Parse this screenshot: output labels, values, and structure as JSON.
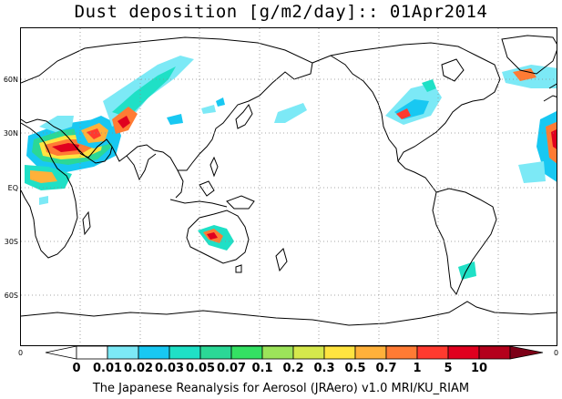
{
  "title": "Dust deposition [g/m2/day]:: 01Apr2014",
  "footer": "The Japanese Reanalysis for Aerosol (JRAero) v1.0 MRI/KU_RIAM",
  "lat_labels": [
    "60N",
    "30N",
    "EQ",
    "30S",
    "60S"
  ],
  "colorbar": {
    "left_edge": "0",
    "right_edge": "0",
    "labels": [
      "0",
      "0.01",
      "0.02",
      "0.03",
      "0.05",
      "0.07",
      "0.1",
      "0.2",
      "0.3",
      "0.5",
      "0.7",
      "1",
      "5",
      "10"
    ],
    "colors": [
      "#ffffff",
      "#ffffff",
      "#7ce9f6",
      "#18c8f2",
      "#1fe0c6",
      "#2bd896",
      "#34e063",
      "#9ce35a",
      "#d5e84c",
      "#ffe440",
      "#ffb13a",
      "#ff7b34",
      "#ff3a2f",
      "#e0001f",
      "#b4001c",
      "#7d0017"
    ]
  },
  "colors": {
    "light_cyan": "#7ce9f6",
    "cyan": "#18c8f2",
    "teal": "#1fe0c6",
    "green": "#2bd896",
    "yellow": "#ffe440",
    "orange": "#ffb13a",
    "red": "#ff3a2f"
  }
}
